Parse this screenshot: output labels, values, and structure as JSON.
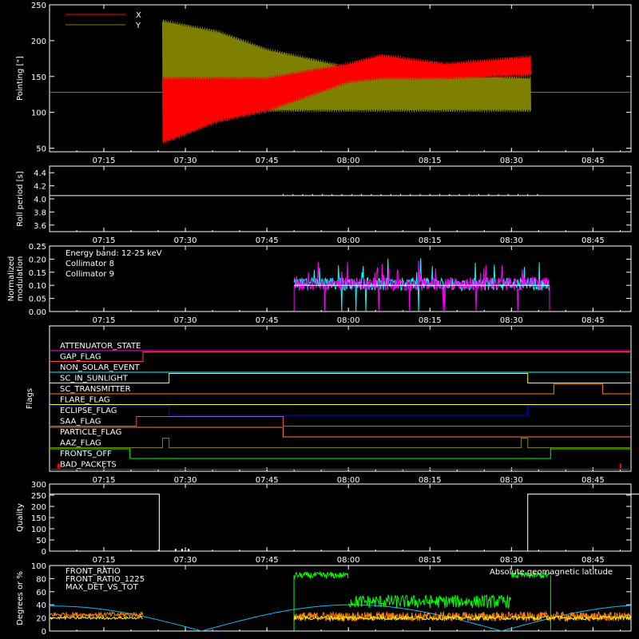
{
  "chart_data": [
    {
      "type": "line",
      "ylabel": "Pointing [\"]",
      "ylim": [
        45,
        250
      ],
      "xlim": [
        "07:05",
        "08:52"
      ],
      "x_ticks": [
        "07:15",
        "07:30",
        "07:45",
        "08:00",
        "08:15",
        "08:30",
        "08:45"
      ],
      "y_ticks": [
        50,
        100,
        150,
        200,
        250
      ],
      "series": [
        {
          "name": "X",
          "color": "#ff0000",
          "baseline": 128,
          "envelope_low": [
            [
              7.43,
              55
            ],
            [
              7.6,
              85
            ],
            [
              7.75,
              100
            ],
            [
              8.0,
              140
            ],
            [
              8.1,
              145
            ],
            [
              8.3,
              145
            ],
            [
              8.56,
              150
            ]
          ],
          "envelope_high": [
            [
              7.43,
              150
            ],
            [
              7.6,
              150
            ],
            [
              7.75,
              150
            ],
            [
              8.0,
              170
            ],
            [
              8.1,
              182
            ],
            [
              8.3,
              170
            ],
            [
              8.56,
              180
            ]
          ]
        },
        {
          "name": "Y",
          "color": "#808000",
          "baseline": 128,
          "envelope_low": [
            [
              7.43,
              95
            ],
            [
              7.6,
              100
            ],
            [
              7.75,
              100
            ],
            [
              8.0,
              100
            ],
            [
              8.3,
              100
            ],
            [
              8.56,
              100
            ]
          ],
          "envelope_high": [
            [
              7.43,
              230
            ],
            [
              7.6,
              215
            ],
            [
              7.75,
              190
            ],
            [
              8.0,
              165
            ],
            [
              8.3,
              155
            ],
            [
              8.56,
              150
            ]
          ]
        }
      ],
      "legend": "top-left",
      "legend_labels": [
        "X",
        "Y"
      ]
    },
    {
      "type": "line",
      "ylabel": "Roll period [s]",
      "ylim": [
        3.5,
        4.5
      ],
      "y_ticks": [
        "3.6",
        "3.8",
        "4.0",
        "4.2",
        "4.4"
      ],
      "series": [
        {
          "name": "",
          "color": "#ffffff",
          "value": 4.05
        }
      ]
    },
    {
      "type": "bar",
      "ylabel": "Normalized modulation",
      "ylim": [
        0.0,
        0.25
      ],
      "y_ticks": [
        "0.00",
        "0.05",
        "0.10",
        "0.15",
        "0.20",
        "0.25"
      ],
      "energy_band_label": "Energy band: 12-25 keV",
      "series": [
        {
          "name": "Collimator 8",
          "color": "#00ffff"
        },
        {
          "name": "Collimator 9",
          "color": "#ff00ff"
        }
      ],
      "x_start": "07:50",
      "x_end": "08:37",
      "typical_value": 0.1
    },
    {
      "type": "line",
      "ylabel": "Flags",
      "flags": [
        {
          "name": "ATTENUATOR_STATE",
          "color": "#ff00ff",
          "segments": [
            [
              7.0,
              8.9,
              0
            ]
          ]
        },
        {
          "name": "GAP_FLAG",
          "color": "#ff4040",
          "segments": [
            [
              7.0,
              7.37,
              0
            ],
            [
              7.37,
              8.9,
              1
            ]
          ]
        },
        {
          "name": "NON_SOLAR_EVENT",
          "color": "#00ffff",
          "segments": [
            [
              7.0,
              8.9,
              0
            ]
          ]
        },
        {
          "name": "SC_IN_SUNLIGHT",
          "color": "#ffff00",
          "segments": [
            [
              7.0,
              7.45,
              0
            ],
            [
              7.45,
              8.55,
              1
            ],
            [
              8.55,
              8.9,
              0
            ]
          ]
        },
        {
          "name": "SC_TRANSMITTER",
          "color": "#ff8000",
          "segments": [
            [
              7.0,
              8.63,
              0
            ],
            [
              8.63,
              8.78,
              1
            ],
            [
              8.78,
              8.9,
              0
            ]
          ]
        },
        {
          "name": "FLARE_FLAG",
          "color": "#ffff00",
          "segments": [
            [
              7.0,
              8.9,
              0
            ]
          ]
        },
        {
          "name": "ECLIPSE_FLAG",
          "color": "#0000ff",
          "segments": [
            [
              7.0,
              7.45,
              1
            ],
            [
              7.45,
              8.55,
              0
            ],
            [
              8.55,
              8.9,
              1
            ]
          ]
        },
        {
          "name": "SAA_FLAG",
          "color": "#ff4040",
          "segments": [
            [
              7.0,
              7.35,
              0
            ],
            [
              7.35,
              7.8,
              1
            ],
            [
              7.8,
              8.9,
              0
            ]
          ]
        },
        {
          "name": "PARTICLE_FLAG",
          "color": "#ff8040",
          "segments": [
            [
              7.0,
              7.8,
              1
            ],
            [
              7.8,
              8.9,
              0
            ]
          ]
        },
        {
          "name": "AAZ_FLAG",
          "color": "#808000",
          "segments": [
            [
              7.0,
              7.43,
              0
            ],
            [
              7.43,
              7.45,
              1
            ],
            [
              7.45,
              8.53,
              0
            ],
            [
              8.53,
              8.55,
              1
            ],
            [
              8.55,
              8.9,
              0
            ]
          ]
        },
        {
          "name": "FRONTS_OFF",
          "color": "#00ff00",
          "segments": [
            [
              7.0,
              7.33,
              1
            ],
            [
              7.33,
              8.62,
              0
            ],
            [
              8.62,
              8.9,
              1
            ]
          ]
        },
        {
          "name": "BAD_PACKETS",
          "color": "#ff0000",
          "segments": [
            [
              7.0,
              8.9,
              0
            ]
          ]
        }
      ]
    },
    {
      "type": "line",
      "ylabel": "Quality",
      "ylim": [
        0,
        300
      ],
      "y_ticks": [
        "0",
        "50",
        "100",
        "150",
        "200",
        "250",
        "300"
      ],
      "series": [
        {
          "name": "",
          "color": "#ffffff",
          "points": [
            [
              7.05,
              255
            ],
            [
              7.42,
              255
            ],
            [
              7.42,
              0
            ],
            [
              8.55,
              0
            ],
            [
              8.55,
              255
            ],
            [
              8.9,
              255
            ]
          ]
        }
      ]
    },
    {
      "type": "line",
      "ylabel": "Degrees or %",
      "ylim": [
        0,
        100
      ],
      "y_ticks": [
        "0",
        "20",
        "40",
        "60",
        "80",
        "100"
      ],
      "series": [
        {
          "name": "FRONT_RATIO",
          "color": "#ffff00"
        },
        {
          "name": "FRONT_RATIO_1225",
          "color": "#00ff00"
        },
        {
          "name": "MAX_DET_VS_TOT",
          "color": "#ff8000"
        },
        {
          "name": "Absolute geomagnetic latitude",
          "color": "#00c0ff"
        }
      ]
    }
  ],
  "x_tick_labels": [
    "07:15",
    "07:30",
    "07:45",
    "08:00",
    "08:15",
    "08:30",
    "08:45"
  ]
}
